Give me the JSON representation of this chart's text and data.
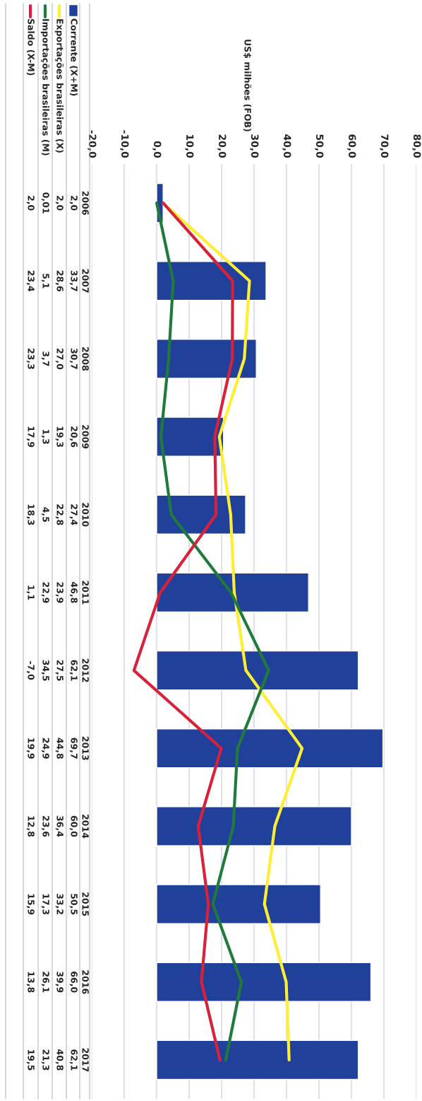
{
  "chart_data": {
    "type": "bar",
    "orientation": "horizontal",
    "title": "US$ milhões (FOB)",
    "categories": [
      "2006",
      "2007",
      "2008",
      "2009",
      "2010",
      "2011",
      "2012",
      "2013",
      "2014",
      "2015",
      "2016",
      "2017"
    ],
    "series": [
      {
        "name": "Corrente (X+M)",
        "color": "#21409a",
        "values": [
          2.0,
          33.7,
          30.7,
          20.6,
          27.4,
          46.8,
          62.1,
          69.7,
          60.0,
          50.5,
          66.0,
          62.1
        ],
        "value_labels": [
          "2,0",
          "33,7",
          "30,7",
          "20,6",
          "27,4",
          "46,8",
          "62,1",
          "69,7",
          "60,0",
          "50,5",
          "66,0",
          "62,1"
        ]
      },
      {
        "name": "Exportações brasileiras (X)",
        "type": "line",
        "color": "#ffee33",
        "values": [
          2.0,
          28.6,
          27.0,
          19.3,
          22.8,
          23.9,
          27.5,
          44.8,
          36.4,
          33.2,
          39.9,
          40.8
        ],
        "value_labels": [
          "2,0",
          "28,6",
          "27,0",
          "19,3",
          "22,8",
          "23,9",
          "27,5",
          "44,8",
          "36,4",
          "33,2",
          "39,9",
          "40,8"
        ]
      },
      {
        "name": "Importações brasileiras (M)",
        "type": "line",
        "color": "#1f7a3c",
        "values": [
          0.01,
          5.1,
          3.7,
          1.3,
          4.5,
          22.9,
          34.5,
          24.9,
          23.6,
          17.3,
          26.1,
          21.3
        ],
        "value_labels": [
          "0,01",
          "5,1",
          "3,7",
          "1,3",
          "4,5",
          "22,9",
          "34,5",
          "24,9",
          "23,6",
          "17,3",
          "26,1",
          "21,3"
        ]
      },
      {
        "name": "Saldo (X-M)",
        "type": "line",
        "color": "#d8213b",
        "values": [
          2.0,
          23.4,
          23.3,
          17.9,
          18.3,
          1.1,
          -7.0,
          19.9,
          12.8,
          15.9,
          13.8,
          19.5
        ],
        "value_labels": [
          "2,0",
          "23,4",
          "23,3",
          "17,9",
          "18,3",
          "1,1",
          "-7,0",
          "19,9",
          "12,8",
          "15,9",
          "13,8",
          "19,5"
        ]
      }
    ],
    "xlim": [
      -20,
      80
    ],
    "xticks": [
      {
        "value": -20,
        "label": "-20,0"
      },
      {
        "value": -10,
        "label": "-10,0"
      },
      {
        "value": 0,
        "label": "0,0"
      },
      {
        "value": 10,
        "label": "10,0"
      },
      {
        "value": 20,
        "label": "20,0"
      },
      {
        "value": 30,
        "label": "30,0"
      },
      {
        "value": 40,
        "label": "40,0"
      },
      {
        "value": 50,
        "label": "50,0"
      },
      {
        "value": 60,
        "label": "60,0"
      },
      {
        "value": 70,
        "label": "70,0"
      },
      {
        "value": 80,
        "label": "80,0"
      }
    ],
    "grid": "x",
    "legend": "left",
    "line_style": "solid",
    "marker": "none"
  }
}
